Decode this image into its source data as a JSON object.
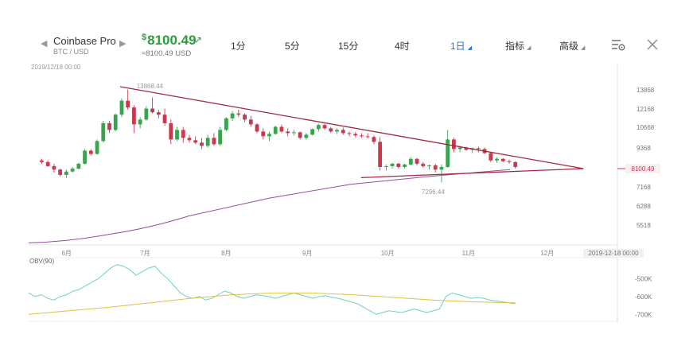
{
  "header": {
    "exchange": "Coinbase Pro",
    "pair": "BTC / USD",
    "price_symbol": "$",
    "price": "8100.49",
    "price_arrow": "↗",
    "sub_price": "≈8100.49 USD",
    "tabs": [
      {
        "label": "1分",
        "active": false,
        "dropdown": false
      },
      {
        "label": "5分",
        "active": false,
        "dropdown": false
      },
      {
        "label": "15分",
        "active": false,
        "dropdown": false
      },
      {
        "label": "4时",
        "active": false,
        "dropdown": false
      },
      {
        "label": "1日",
        "active": true,
        "dropdown": true
      },
      {
        "label": "指标",
        "active": false,
        "dropdown": true
      },
      {
        "label": "高级",
        "active": false,
        "dropdown": true
      }
    ],
    "icons": [
      "chevron-left-icon",
      "chevron-right-icon",
      "settings-list-icon",
      "close-icon"
    ]
  },
  "chart_date": "2019/12/18 00:00",
  "colors": {
    "up": "#3aa34f",
    "down": "#c8384e",
    "trendline": "#a22a3f",
    "ma": "#8f4f97",
    "obv": "#6fd1c0",
    "obv_ma": "#d9c34a",
    "price_accent": "#2a9d3c",
    "active_tab": "#2b6fd6"
  },
  "chart_data": [
    {
      "type": "candlestick",
      "title": "",
      "x_labels": [
        "6月",
        "7月",
        "8月",
        "9月",
        "10月",
        "11月",
        "12月"
      ],
      "y_ticks": [
        13868,
        12168,
        10668,
        9368,
        7168,
        6288,
        5518
      ],
      "y_range": [
        5000,
        15000
      ],
      "current_price": 8100.49,
      "cursor_date_label": "2019-12-18 00:00",
      "annotations": [
        {
          "text": "13868.44",
          "x": "2019-06-26",
          "y": 13868.44
        },
        {
          "text": "7296.44",
          "x": "2019-10-24",
          "y": 7296.44
        }
      ],
      "trendlines": [
        {
          "name": "resistance",
          "from": {
            "x": "2019-06-24",
            "y": 14150
          },
          "to": {
            "x": "2019-12-18",
            "y": 8100
          }
        },
        {
          "name": "support",
          "from": {
            "x": "2019-09-24",
            "y": 7640
          },
          "to": {
            "x": "2019-12-18",
            "y": 8100
          }
        }
      ],
      "series": [
        {
          "name": "Daily candles",
          "ohlc": [
            [
              8600,
              8700,
              8400,
              8500
            ],
            [
              8500,
              8600,
              8200,
              8250
            ],
            [
              8250,
              8400,
              7900,
              8050
            ],
            [
              8050,
              8100,
              7700,
              7780
            ],
            [
              7780,
              8050,
              7620,
              7950
            ],
            [
              7950,
              8200,
              7900,
              8100
            ],
            [
              8100,
              8450,
              8050,
              8400
            ],
            [
              8400,
              9300,
              8350,
              9200
            ],
            [
              9200,
              9300,
              8900,
              9000
            ],
            [
              9000,
              9900,
              8950,
              9800
            ],
            [
              9800,
              11200,
              9700,
              11000
            ],
            [
              11000,
              11200,
              10300,
              10500
            ],
            [
              10500,
              11800,
              10400,
              11700
            ],
            [
              11700,
              13100,
              11500,
              12900
            ],
            [
              12900,
              13900,
              12100,
              12300
            ],
            [
              12300,
              12500,
              10300,
              10900
            ],
            [
              10900,
              11500,
              10600,
              11300
            ],
            [
              11300,
              12400,
              11200,
              12200
            ],
            [
              12200,
              13200,
              11800,
              11900
            ],
            [
              11900,
              12100,
              11400,
              11700
            ],
            [
              11700,
              12200,
              10800,
              11000
            ],
            [
              11000,
              11300,
              9600,
              9900
            ],
            [
              9900,
              10700,
              9800,
              10500
            ],
            [
              10500,
              10700,
              9700,
              10000
            ],
            [
              10000,
              10200,
              9700,
              9850
            ],
            [
              9850,
              10100,
              9600,
              9700
            ],
            [
              9700,
              10000,
              9300,
              9500
            ],
            [
              9500,
              10200,
              9400,
              10000
            ],
            [
              10000,
              10300,
              9500,
              9600
            ],
            [
              9600,
              10700,
              9500,
              10500
            ],
            [
              10500,
              11500,
              10400,
              11400
            ],
            [
              11400,
              12000,
              11200,
              11800
            ],
            [
              11800,
              12100,
              11500,
              11700
            ],
            [
              11700,
              11800,
              11100,
              11300
            ],
            [
              11300,
              11600,
              10700,
              10900
            ],
            [
              10900,
              11000,
              10300,
              10400
            ],
            [
              10400,
              10600,
              9900,
              10100
            ],
            [
              10100,
              10400,
              9800,
              10250
            ],
            [
              10250,
              10800,
              10200,
              10700
            ],
            [
              10700,
              10900,
              10300,
              10400
            ],
            [
              10400,
              10600,
              10100,
              10300
            ],
            [
              10300,
              10500,
              10150,
              10350
            ],
            [
              10350,
              10400,
              9900,
              10000
            ],
            [
              10000,
              10300,
              9900,
              10200
            ],
            [
              10200,
              10600,
              10150,
              10550
            ],
            [
              10550,
              10950,
              10400,
              10850
            ],
            [
              10850,
              10950,
              10500,
              10600
            ],
            [
              10600,
              10700,
              10300,
              10400
            ],
            [
              10400,
              10600,
              10250,
              10500
            ],
            [
              10500,
              10650,
              10200,
              10300
            ],
            [
              10300,
              10400,
              10100,
              10250
            ],
            [
              10250,
              10350,
              10050,
              10150
            ],
            [
              10150,
              10300,
              10000,
              10100
            ],
            [
              10100,
              10300,
              9950,
              10050
            ],
            [
              10050,
              10150,
              9600,
              9750
            ],
            [
              9750,
              10050,
              8000,
              8200
            ],
            [
              8200,
              8350,
              8000,
              8250
            ],
            [
              8250,
              8450,
              8100,
              8400
            ],
            [
              8400,
              8450,
              8100,
              8200
            ],
            [
              8200,
              8400,
              8100,
              8350
            ],
            [
              8350,
              8800,
              8300,
              8700
            ],
            [
              8700,
              8750,
              8300,
              8400
            ],
            [
              8400,
              8500,
              8150,
              8250
            ],
            [
              8250,
              8350,
              8050,
              8300
            ],
            [
              8300,
              8400,
              7900,
              8050
            ],
            [
              8050,
              8350,
              7400,
              8200
            ],
            [
              8200,
              10500,
              8150,
              9900
            ],
            [
              9900,
              10000,
              9100,
              9300
            ],
            [
              9300,
              9500,
              9100,
              9400
            ],
            [
              9400,
              9450,
              9200,
              9250
            ],
            [
              9250,
              9400,
              9050,
              9350
            ],
            [
              9350,
              9450,
              9100,
              9300
            ],
            [
              9300,
              9400,
              9000,
              9050
            ],
            [
              9050,
              9100,
              8500,
              8600
            ],
            [
              8600,
              8800,
              8450,
              8700
            ],
            [
              8700,
              8750,
              8500,
              8550
            ],
            [
              8550,
              8650,
              8400,
              8500
            ],
            [
              8500,
              8550,
              8100,
              8200
            ]
          ]
        },
        {
          "name": "Moving average",
          "x": [
            "2019-05-20",
            "2019-06-20",
            "2019-07-20",
            "2019-08-20",
            "2019-09-20",
            "2019-10-20",
            "2019-11-20"
          ],
          "values": [
            4800,
            5150,
            5880,
            6650,
            7300,
            7700,
            8050
          ]
        }
      ]
    },
    {
      "type": "line",
      "title": "OBV(90)",
      "y_ticks": [
        "-500K",
        "-600K",
        "-700K"
      ],
      "y_range": [
        -730000,
        -400000
      ],
      "series": [
        {
          "name": "OBV",
          "values": [
            -580000,
            -600000,
            -590000,
            -610000,
            -620000,
            -600000,
            -590000,
            -570000,
            -560000,
            -540000,
            -520000,
            -500000,
            -470000,
            -440000,
            -420000,
            -430000,
            -450000,
            -480000,
            -460000,
            -440000,
            -430000,
            -470000,
            -500000,
            -540000,
            -580000,
            -600000,
            -610000,
            -600000,
            -620000,
            -610000,
            -590000,
            -570000,
            -580000,
            -600000,
            -610000,
            -600000,
            -590000,
            -595000,
            -600000,
            -610000,
            -600000,
            -590000,
            -580000,
            -590000,
            -600000,
            -610000,
            -600000,
            -595000,
            -605000,
            -610000,
            -620000,
            -630000,
            -640000,
            -660000,
            -680000,
            -700000,
            -690000,
            -680000,
            -685000,
            -690000,
            -680000,
            -670000,
            -680000,
            -690000,
            -680000,
            -670000,
            -600000,
            -580000,
            -590000,
            -600000,
            -610000,
            -605000,
            -610000,
            -620000,
            -625000,
            -630000,
            -635000,
            -640000
          ]
        },
        {
          "name": "OBV average",
          "values": [
            -700000,
            -680000,
            -660000,
            -635000,
            -610000,
            -590000,
            -580000,
            -580000,
            -590000,
            -605000,
            -620000,
            -630000,
            -635000
          ]
        }
      ]
    }
  ]
}
